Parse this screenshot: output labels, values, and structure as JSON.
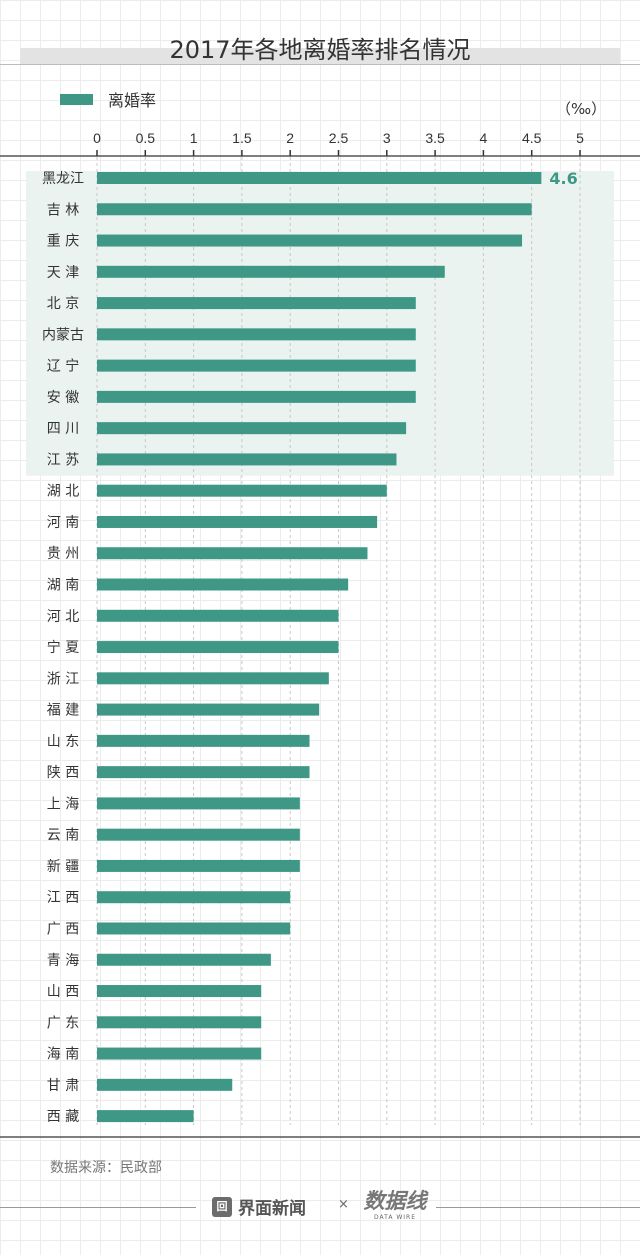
{
  "chart_data": {
    "type": "bar",
    "orientation": "horizontal",
    "title": "2017年各地离婚率排名情况",
    "unit_label": "（‰）",
    "legend": {
      "label": "离婚率",
      "placement": "top-left"
    },
    "xlim": [
      0,
      5
    ],
    "ticks": [
      "0",
      "0.5",
      "1",
      "1.5",
      "2",
      "2.5",
      "3",
      "3.5",
      "4",
      "4.5",
      "5"
    ],
    "grid": "vertical dashed",
    "highlight_top_n": 10,
    "categories": [
      "黑龙江",
      "吉 林",
      "重 庆",
      "天 津",
      "北 京",
      "内蒙古",
      "辽 宁",
      "安 徽",
      "四 川",
      "江 苏",
      "湖 北",
      "河 南",
      "贵 州",
      "湖 南",
      "河 北",
      "宁 夏",
      "浙 江",
      "福 建",
      "山 东",
      "陕 西",
      "上 海",
      "云 南",
      "新 疆",
      "江 西",
      "广 西",
      "青 海",
      "山 西",
      "广 东",
      "海 南",
      "甘 肃",
      "西 藏"
    ],
    "series": [
      {
        "name": "离婚率",
        "values": [
          4.6,
          4.5,
          4.4,
          3.6,
          3.3,
          3.3,
          3.3,
          3.3,
          3.2,
          3.1,
          3.0,
          2.9,
          2.8,
          2.6,
          2.5,
          2.5,
          2.4,
          2.3,
          2.2,
          2.2,
          2.1,
          2.1,
          2.1,
          2.0,
          2.0,
          1.8,
          1.7,
          1.7,
          1.7,
          1.4,
          1.0
        ]
      }
    ],
    "data_labels": [
      {
        "category": "黑龙江",
        "text": "4.6"
      }
    ]
  },
  "colors": {
    "bar": "#3f9886",
    "highlight_bg": "#eaf3ef",
    "label": "#3f9886"
  },
  "footer": {
    "source": "数据来源：民政部",
    "brand1": "界面新闻",
    "times": "×",
    "brand2": "数据线",
    "brand2_sub": "DATA WIRE"
  }
}
